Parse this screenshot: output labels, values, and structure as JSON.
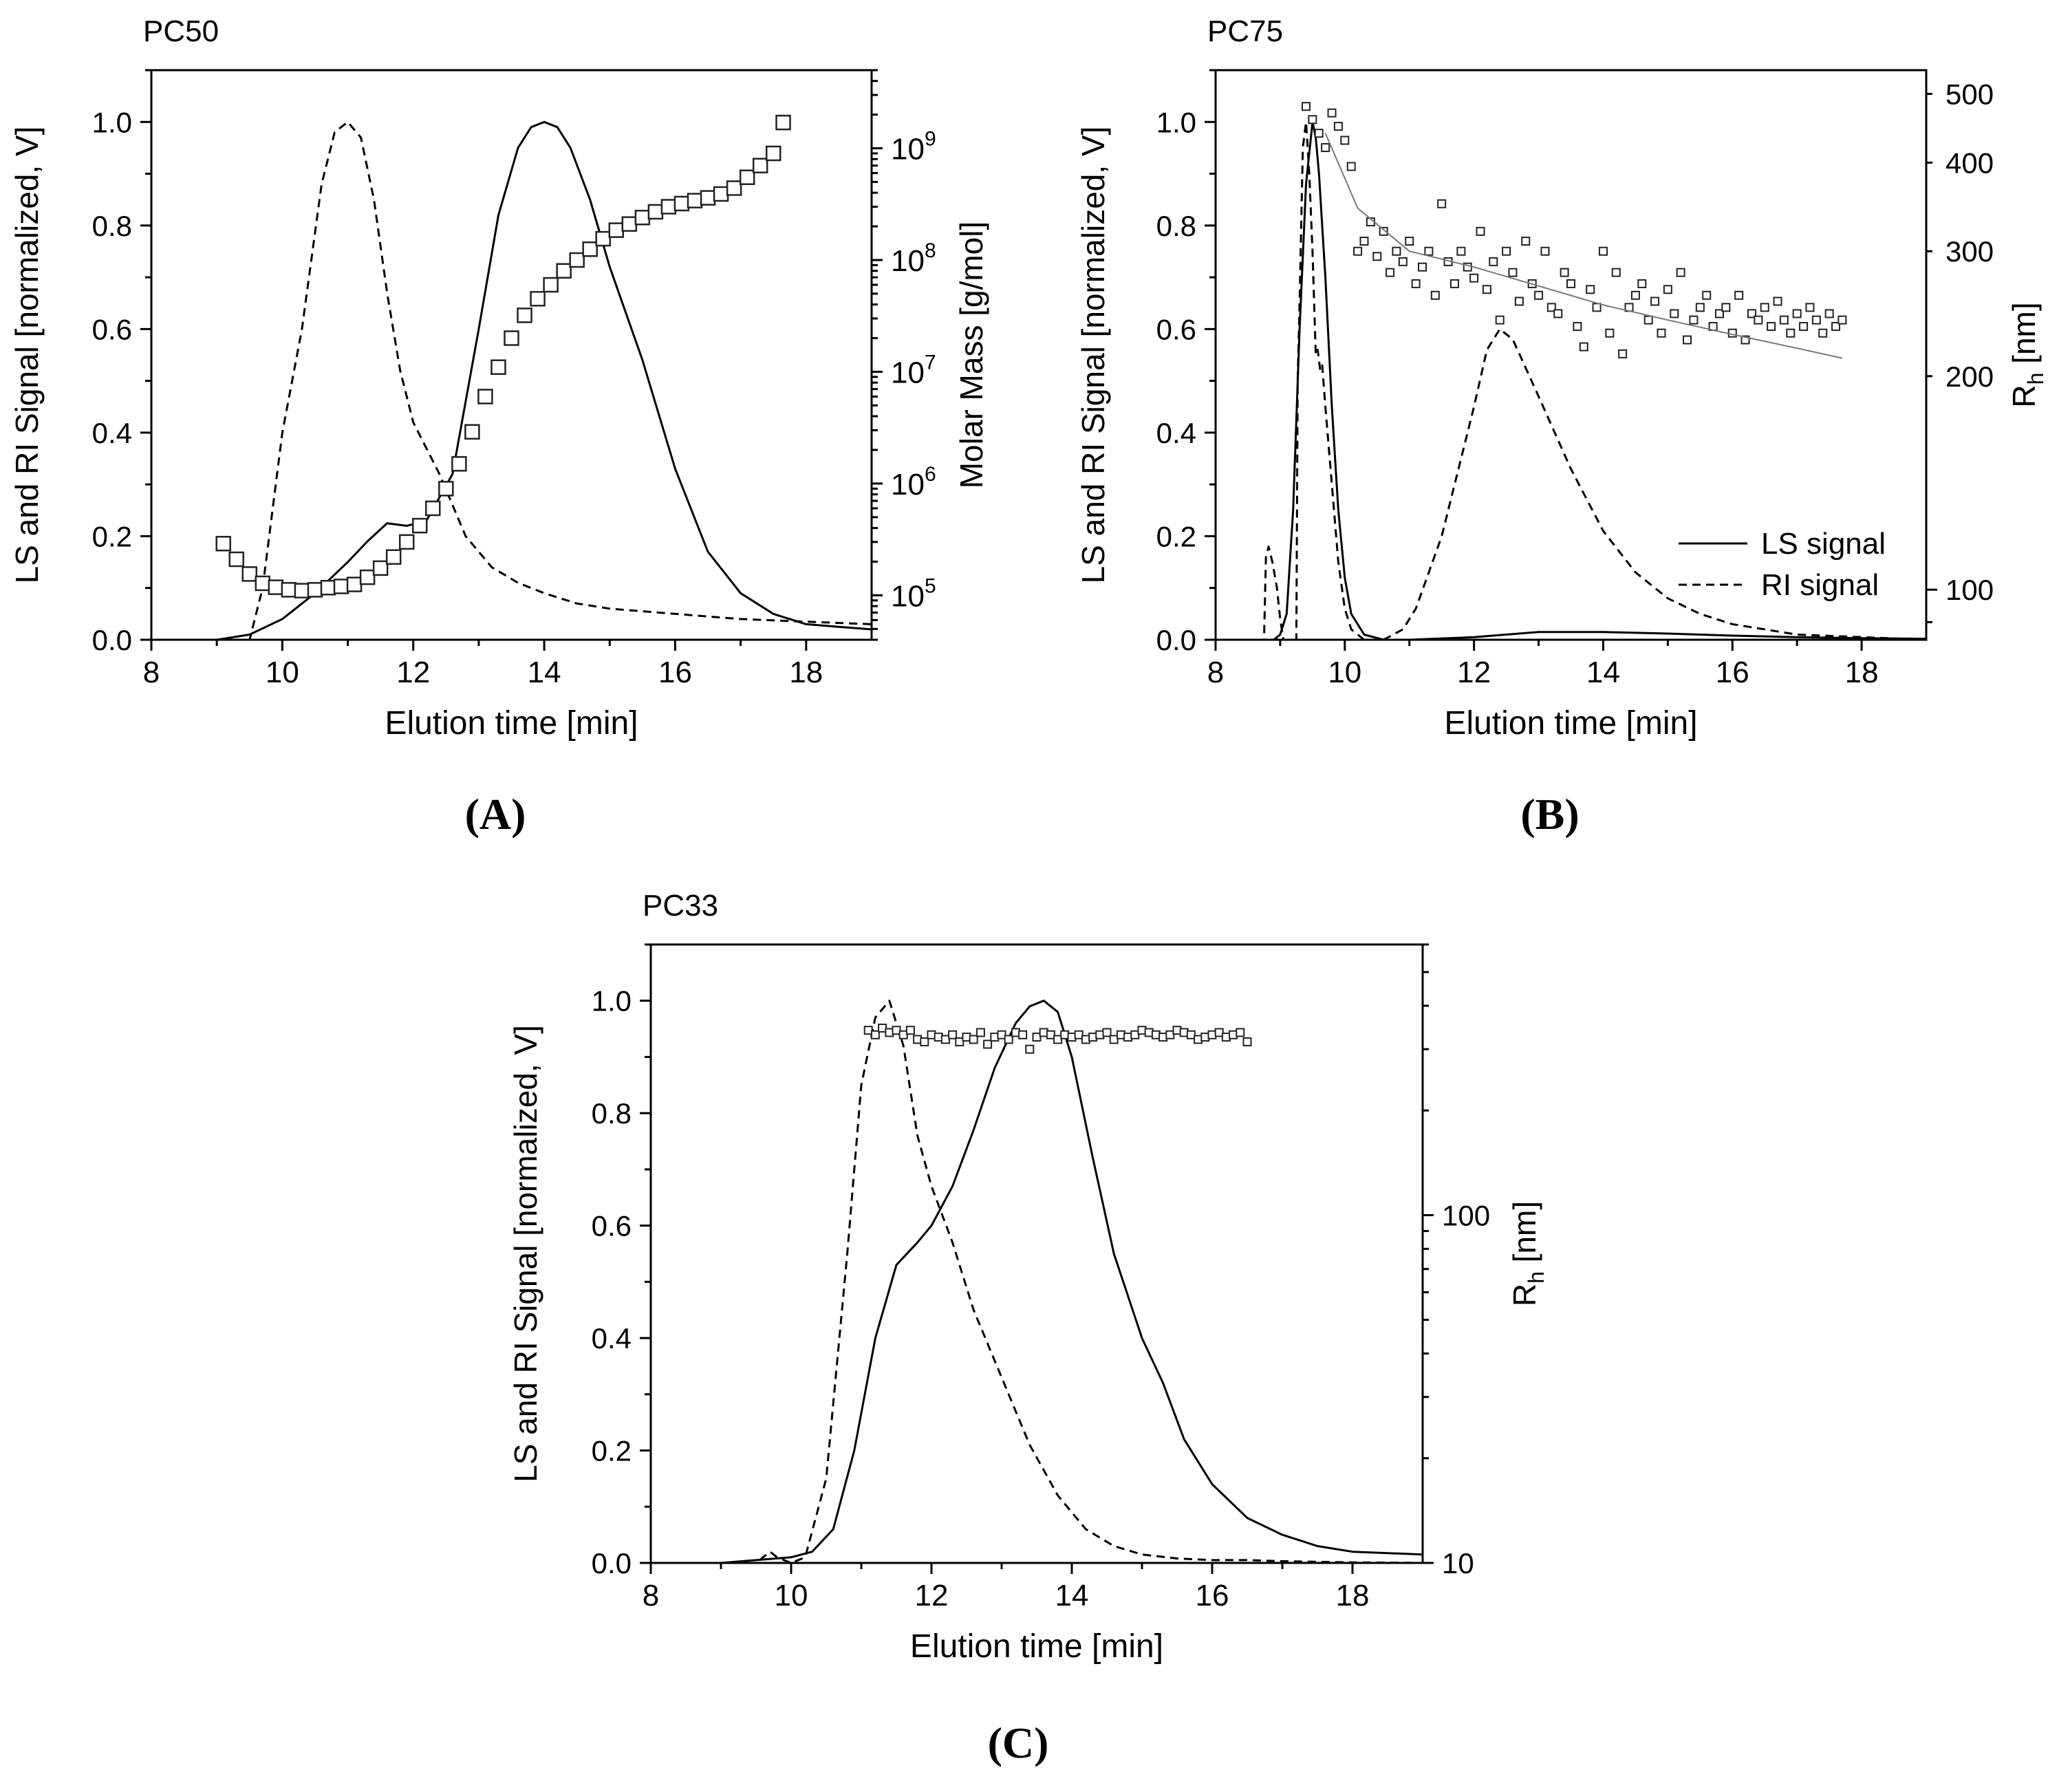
{
  "figure": {
    "caption_A": "(A)",
    "caption_B": "(B)",
    "caption_C": "(C)"
  },
  "chart_data": [
    {
      "id": "A",
      "type": "line",
      "title": "PC50",
      "xlabel": "Elution time [min]",
      "ylabel": "LS and RI Signal [normalized, V]",
      "y2label": "Molar Mass [g/mol]",
      "xlim": [
        8,
        19
      ],
      "ylim": [
        0,
        1.1
      ],
      "xticks": [
        8,
        10,
        12,
        14,
        16,
        18
      ],
      "yticks": [
        0.0,
        0.2,
        0.4,
        0.6,
        0.8,
        1.0
      ],
      "y2scale": "log",
      "y2lim": [
        40000,
        5000000000
      ],
      "y2ticks": [
        {
          "value": 100000,
          "base": "10",
          "exp": "5"
        },
        {
          "value": 1000000,
          "base": "10",
          "exp": "6"
        },
        {
          "value": 10000000,
          "base": "10",
          "exp": "7"
        },
        {
          "value": 100000000,
          "base": "10",
          "exp": "8"
        },
        {
          "value": 1000000000,
          "base": "10",
          "exp": "9"
        }
      ],
      "series": [
        {
          "name": "LS signal",
          "style": "solid",
          "x": [
            8,
            9,
            9.5,
            10,
            10.5,
            11,
            11.3,
            11.6,
            11.9,
            12.2,
            12.6,
            13,
            13.3,
            13.6,
            13.8,
            14,
            14.2,
            14.4,
            14.7,
            15,
            15.5,
            16,
            16.5,
            17,
            17.5,
            18,
            18.5,
            19
          ],
          "y": [
            0,
            0,
            0.01,
            0.04,
            0.09,
            0.15,
            0.19,
            0.225,
            0.22,
            0.23,
            0.32,
            0.6,
            0.82,
            0.95,
            0.99,
            1.0,
            0.99,
            0.95,
            0.85,
            0.72,
            0.54,
            0.33,
            0.17,
            0.09,
            0.05,
            0.03,
            0.025,
            0.02
          ]
        },
        {
          "name": "RI signal",
          "style": "dashed",
          "x": [
            8,
            9.5,
            9.7,
            10,
            10.3,
            10.6,
            10.8,
            11,
            11.2,
            11.4,
            11.6,
            11.8,
            12,
            12.4,
            12.8,
            13.2,
            13.6,
            14,
            14.5,
            15,
            16,
            17,
            18,
            19
          ],
          "y": [
            0,
            0,
            0.1,
            0.4,
            0.6,
            0.88,
            0.98,
            1.0,
            0.97,
            0.85,
            0.67,
            0.52,
            0.42,
            0.32,
            0.2,
            0.14,
            0.11,
            0.09,
            0.07,
            0.06,
            0.05,
            0.04,
            0.035,
            0.03
          ]
        },
        {
          "name": "Molar Mass",
          "style": "markers",
          "axis": "y2",
          "x": [
            9.1,
            9.3,
            9.5,
            9.7,
            9.9,
            10.1,
            10.3,
            10.5,
            10.7,
            10.9,
            11.1,
            11.3,
            11.5,
            11.7,
            11.9,
            12.1,
            12.3,
            12.5,
            12.7,
            12.9,
            13.1,
            13.3,
            13.5,
            13.7,
            13.9,
            14.1,
            14.3,
            14.5,
            14.7,
            14.9,
            15.1,
            15.3,
            15.5,
            15.7,
            15.9,
            16.1,
            16.3,
            16.5,
            16.7,
            16.9,
            17.1,
            17.3,
            17.5,
            17.65
          ],
          "y": [
            290000,
            210000,
            155000,
            128000,
            118000,
            112000,
            110000,
            112000,
            117000,
            120000,
            125000,
            145000,
            175000,
            220000,
            300000,
            420000,
            600000,
            900000,
            1500000,
            2900000,
            6000000,
            11000000,
            20000000,
            32000000,
            45000000,
            60000000,
            80000000,
            100000000,
            125000000,
            155000000,
            185000000,
            210000000,
            240000000,
            270000000,
            300000000,
            320000000,
            340000000,
            360000000,
            390000000,
            440000000,
            550000000,
            700000000,
            900000000,
            1700000000
          ]
        }
      ]
    },
    {
      "id": "B",
      "type": "line",
      "title": "PC75",
      "xlabel": "Elution time [min]",
      "ylabel": "LS and RI Signal [normalized, V]",
      "y2label": "Rh [nm]",
      "y2label_main": "R",
      "y2label_sub": "h",
      "y2label_unit": " [nm]",
      "xlim": [
        8,
        19
      ],
      "ylim": [
        0,
        1.1
      ],
      "xticks": [
        8,
        10,
        12,
        14,
        16,
        18
      ],
      "yticks": [
        0.0,
        0.2,
        0.4,
        0.6,
        0.8,
        1.0
      ],
      "y2scale": "log",
      "y2lim": [
        85,
        540
      ],
      "y2ticks": [
        100,
        200,
        300,
        400,
        500
      ],
      "legend": {
        "position": "bottom-right",
        "entries": [
          {
            "label": "LS signal",
            "style": "solid"
          },
          {
            "label": "RI signal",
            "style": "dashed"
          }
        ]
      },
      "series": [
        {
          "name": "LS signal",
          "style": "solid",
          "x": [
            8,
            8.9,
            9,
            9.1,
            9.2,
            9.3,
            9.4,
            9.5,
            9.55,
            9.6,
            9.7,
            9.8,
            9.9,
            10,
            10.1,
            10.3,
            10.6,
            11,
            12,
            13,
            14,
            15,
            16,
            17,
            18,
            19
          ],
          "y": [
            0,
            0,
            0.01,
            0.05,
            0.25,
            0.6,
            0.88,
            1.0,
            0.97,
            0.9,
            0.7,
            0.45,
            0.25,
            0.12,
            0.05,
            0.01,
            0,
            0,
            0.005,
            0.015,
            0.015,
            0.012,
            0.008,
            0.005,
            0.003,
            0.002
          ]
        },
        {
          "name": "RI signal",
          "style": "dashed",
          "x": [
            8,
            8.75,
            8.78,
            8.82,
            8.88,
            8.95,
            9.0,
            9.05,
            9.2,
            9.25,
            9.27,
            9.3,
            9.35,
            9.4,
            9.45,
            9.5,
            9.55,
            9.58,
            9.62,
            9.65,
            9.7,
            9.8,
            9.9,
            10,
            10.1,
            10.3,
            10.6,
            10.9,
            11.1,
            11.5,
            12,
            12.2,
            12.4,
            12.6,
            13,
            13.5,
            14,
            14.5,
            15,
            15.5,
            16,
            16.5,
            17,
            18,
            19
          ],
          "y": [
            0,
            0,
            0.16,
            0.18,
            0.15,
            0.1,
            0.04,
            0,
            0,
            0,
            0.5,
            0.65,
            0.95,
            1.0,
            0.9,
            0.75,
            0.55,
            0.56,
            0.52,
            0.53,
            0.45,
            0.3,
            0.15,
            0.06,
            0.02,
            0,
            0,
            0.02,
            0.06,
            0.2,
            0.45,
            0.56,
            0.6,
            0.58,
            0.47,
            0.33,
            0.21,
            0.13,
            0.08,
            0.05,
            0.03,
            0.02,
            0.01,
            0.005,
            0
          ]
        },
        {
          "name": "Rh",
          "style": "markers",
          "axis": "y2",
          "x": [
            9.4,
            9.5,
            9.6,
            9.7,
            9.8,
            9.9,
            10.0,
            10.1,
            10.2,
            10.3,
            10.4,
            10.5,
            10.6,
            10.7,
            10.8,
            10.9,
            11.0,
            11.1,
            11.2,
            11.3,
            11.4,
            11.5,
            11.6,
            11.7,
            11.8,
            11.9,
            12.0,
            12.1,
            12.2,
            12.3,
            12.4,
            12.5,
            12.6,
            12.7,
            12.8,
            12.9,
            13.0,
            13.1,
            13.2,
            13.3,
            13.4,
            13.5,
            13.6,
            13.7,
            13.8,
            13.9,
            14.0,
            14.1,
            14.2,
            14.3,
            14.4,
            14.5,
            14.6,
            14.7,
            14.8,
            14.9,
            15.0,
            15.1,
            15.2,
            15.3,
            15.4,
            15.5,
            15.6,
            15.7,
            15.8,
            15.9,
            16.0,
            16.1,
            16.2,
            16.3,
            16.4,
            16.5,
            16.6,
            16.7,
            16.8,
            16.9,
            17.0,
            17.1,
            17.2,
            17.3,
            17.4,
            17.5,
            17.6,
            17.7
          ],
          "y": [
            480,
            460,
            440,
            420,
            470,
            450,
            430,
            395,
            300,
            310,
            330,
            295,
            320,
            280,
            300,
            290,
            310,
            270,
            285,
            300,
            260,
            350,
            290,
            270,
            300,
            285,
            275,
            320,
            265,
            290,
            240,
            300,
            280,
            255,
            310,
            270,
            260,
            300,
            250,
            245,
            280,
            270,
            235,
            220,
            265,
            250,
            300,
            230,
            280,
            215,
            250,
            260,
            270,
            240,
            255,
            230,
            265,
            245,
            280,
            225,
            240,
            250,
            260,
            235,
            245,
            250,
            230,
            260,
            225,
            245,
            240,
            250,
            235,
            255,
            240,
            230,
            245,
            235,
            250,
            240,
            230,
            245,
            235,
            240
          ]
        },
        {
          "name": "Rh fit",
          "style": "thin-line",
          "axis": "y2",
          "x": [
            9.7,
            10.2,
            11.0,
            12.0,
            13.0,
            14.0,
            15.0,
            16.0,
            17.0,
            17.7
          ],
          "y": [
            440,
            345,
            300,
            285,
            268,
            252,
            240,
            229,
            219,
            212
          ]
        }
      ]
    },
    {
      "id": "C",
      "type": "line",
      "title": "PC33",
      "xlabel": "Elution time [min]",
      "ylabel": "LS and RI Signal [normalized, V]",
      "y2label": "Rh [nm]",
      "y2label_main": "R",
      "y2label_sub": "h",
      "y2label_unit": " [nm]",
      "xlim": [
        8,
        19
      ],
      "ylim": [
        0,
        1.1
      ],
      "xticks": [
        8,
        10,
        12,
        14,
        16,
        18
      ],
      "yticks": [
        0.0,
        0.2,
        0.4,
        0.6,
        0.8,
        1.0
      ],
      "y2scale": "log",
      "y2lim": [
        10,
        600
      ],
      "y2ticks": [
        10,
        100
      ],
      "series": [
        {
          "name": "LS signal",
          "style": "solid",
          "x": [
            8,
            9,
            9.5,
            10,
            10.3,
            10.6,
            10.9,
            11.2,
            11.5,
            11.8,
            12,
            12.3,
            12.6,
            12.9,
            13.2,
            13.4,
            13.6,
            13.8,
            14,
            14.3,
            14.6,
            15,
            15.3,
            15.6,
            16,
            16.5,
            17,
            17.5,
            18,
            19
          ],
          "y": [
            0,
            0,
            0.005,
            0.01,
            0.02,
            0.06,
            0.2,
            0.4,
            0.53,
            0.57,
            0.6,
            0.67,
            0.77,
            0.88,
            0.96,
            0.99,
            1.0,
            0.98,
            0.9,
            0.72,
            0.55,
            0.4,
            0.32,
            0.22,
            0.14,
            0.08,
            0.05,
            0.03,
            0.02,
            0.015
          ]
        },
        {
          "name": "RI signal",
          "style": "dashed",
          "x": [
            8,
            9.5,
            9.7,
            9.8,
            10,
            10.2,
            10.5,
            10.8,
            11,
            11.2,
            11.4,
            11.6,
            11.8,
            12,
            12.3,
            12.6,
            13,
            13.4,
            13.8,
            14.2,
            14.6,
            15,
            15.5,
            16,
            16.5,
            17,
            18,
            19
          ],
          "y": [
            0,
            0,
            0.02,
            0.01,
            0,
            0.01,
            0.15,
            0.55,
            0.85,
            0.97,
            1.0,
            0.92,
            0.76,
            0.67,
            0.57,
            0.45,
            0.33,
            0.21,
            0.12,
            0.06,
            0.03,
            0.015,
            0.008,
            0.005,
            0.005,
            0.003,
            0.001,
            0
          ]
        },
        {
          "name": "Rh",
          "style": "markers",
          "axis": "y2",
          "x": [
            11.1,
            11.2,
            11.3,
            11.4,
            11.5,
            11.6,
            11.7,
            11.8,
            11.9,
            12.0,
            12.1,
            12.2,
            12.3,
            12.4,
            12.5,
            12.6,
            12.7,
            12.8,
            12.9,
            13.0,
            13.1,
            13.2,
            13.3,
            13.4,
            13.5,
            13.6,
            13.7,
            13.8,
            13.9,
            14.0,
            14.1,
            14.2,
            14.3,
            14.4,
            14.5,
            14.6,
            14.7,
            14.8,
            14.9,
            15.0,
            15.1,
            15.2,
            15.3,
            15.4,
            15.5,
            15.6,
            15.7,
            15.8,
            15.9,
            16.0,
            16.1,
            16.2,
            16.3,
            16.4,
            16.5
          ],
          "y": [
            340,
            330,
            345,
            335,
            340,
            330,
            340,
            320,
            315,
            330,
            325,
            320,
            330,
            315,
            325,
            320,
            335,
            310,
            325,
            330,
            320,
            335,
            330,
            300,
            325,
            335,
            330,
            320,
            330,
            325,
            330,
            320,
            325,
            330,
            335,
            320,
            330,
            325,
            330,
            340,
            335,
            330,
            325,
            330,
            340,
            335,
            330,
            320,
            325,
            330,
            335,
            325,
            330,
            335,
            315
          ]
        }
      ]
    }
  ]
}
